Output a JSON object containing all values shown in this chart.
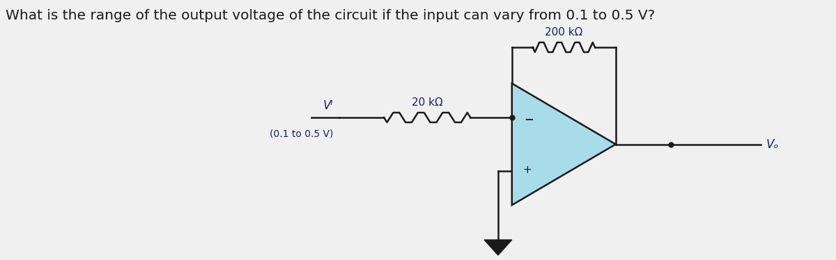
{
  "title": "What is the range of the output voltage of the circuit if the input can vary from 0.1 to 0.5 V?",
  "title_fontsize": 14.5,
  "bg_color": "#f0f0f0",
  "opamp_fill": "#a8dce8",
  "opamp_edge": "#1a1a1a",
  "line_color": "#1a1a1a",
  "text_color": "#1a2060",
  "r_input_label": "20 kΩ",
  "r_feedback_label": "200 kΩ",
  "vi_label": "Vᴵ",
  "vi_sub_label": "(0.1 to 0.5 V)",
  "vo_label": "Vₒ",
  "minus_label": "−",
  "plus_label": "+"
}
